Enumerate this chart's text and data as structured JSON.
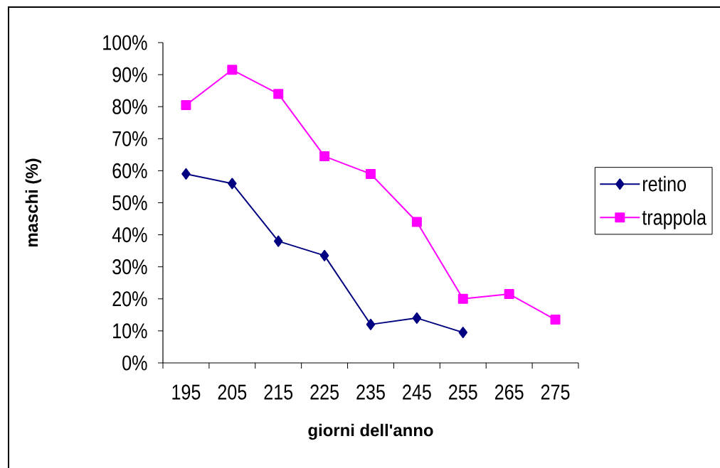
{
  "chart_data": {
    "type": "line",
    "xlabel": "giorni dell'anno",
    "ylabel": "maschi (%)",
    "categories": [
      "195",
      "205",
      "215",
      "225",
      "235",
      "245",
      "255",
      "265",
      "275"
    ],
    "series": [
      {
        "name": "retino",
        "color": "#000080",
        "marker": "diamond",
        "values": [
          59,
          56,
          38,
          33.5,
          12,
          14,
          9.5,
          null,
          null
        ]
      },
      {
        "name": "trappola",
        "color": "#ff00ff",
        "marker": "square",
        "values": [
          80.5,
          91.5,
          84,
          64.5,
          59,
          44,
          20,
          21.5,
          13.5
        ]
      }
    ],
    "ylim": [
      0,
      100
    ],
    "yticks": [
      {
        "value": 0,
        "label": "0%"
      },
      {
        "value": 10,
        "label": "10%"
      },
      {
        "value": 20,
        "label": "20%"
      },
      {
        "value": 30,
        "label": "30%"
      },
      {
        "value": 40,
        "label": "40%"
      },
      {
        "value": 50,
        "label": "50%"
      },
      {
        "value": 60,
        "label": "60%"
      },
      {
        "value": 70,
        "label": "70%"
      },
      {
        "value": 80,
        "label": "80%"
      },
      {
        "value": 90,
        "label": "90%"
      },
      {
        "value": 100,
        "label": "100%"
      }
    ],
    "legend": "right"
  }
}
